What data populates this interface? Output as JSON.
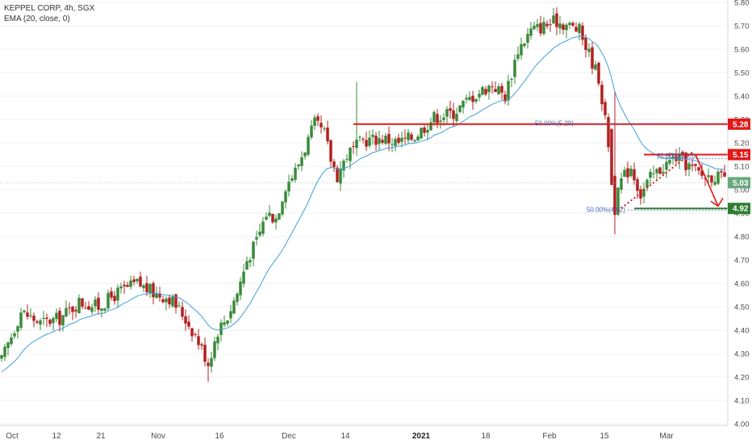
{
  "header": {
    "title": "KEPPEL CORP, 4h, SGX",
    "indicator": "EMA (20, close, 0)"
  },
  "chart_data": {
    "type": "candlestick",
    "ylim": [
      4.0,
      5.8
    ],
    "y_ticks": [
      "5.80",
      "5.70",
      "5.60",
      "5.50",
      "5.40",
      "5.30",
      "5.20",
      "5.10",
      "5.00",
      "4.90",
      "4.80",
      "4.70",
      "4.60",
      "4.50",
      "4.40",
      "4.30",
      "4.20",
      "4.10",
      "4.00"
    ],
    "x_ticks": [
      {
        "label": "Oct",
        "bold": false
      },
      {
        "label": "12",
        "bold": false
      },
      {
        "label": "21",
        "bold": false
      },
      {
        "label": "Nov",
        "bold": false
      },
      {
        "label": "16",
        "bold": false
      },
      {
        "label": "Dec",
        "bold": false
      },
      {
        "label": "14",
        "bold": false
      },
      {
        "label": "2021",
        "bold": true
      },
      {
        "label": "18",
        "bold": false
      },
      {
        "label": "Feb",
        "bold": false
      },
      {
        "label": "15",
        "bold": false
      },
      {
        "label": "Mar",
        "bold": false
      }
    ],
    "price_path": [
      [
        0,
        4.27
      ],
      [
        6,
        4.48
      ],
      [
        12,
        4.43
      ],
      [
        18,
        4.45
      ],
      [
        24,
        4.52
      ],
      [
        30,
        4.5
      ],
      [
        36,
        4.56
      ],
      [
        42,
        4.6
      ],
      [
        47,
        4.56
      ],
      [
        52,
        4.54
      ],
      [
        56,
        4.47
      ],
      [
        60,
        4.38
      ],
      [
        64,
        4.26
      ],
      [
        67,
        4.4
      ],
      [
        70,
        4.46
      ],
      [
        73,
        4.56
      ],
      [
        76,
        4.7
      ],
      [
        79,
        4.78
      ],
      [
        82,
        4.9
      ],
      [
        85,
        4.88
      ],
      [
        88,
        5.02
      ],
      [
        91,
        5.08
      ],
      [
        94,
        5.18
      ],
      [
        97,
        5.28
      ],
      [
        100,
        5.24
      ],
      [
        102,
        5.13
      ],
      [
        104,
        5.06
      ],
      [
        107,
        5.15
      ],
      [
        112,
        5.21
      ],
      [
        118,
        5.22
      ],
      [
        123,
        5.2
      ],
      [
        128,
        5.23
      ],
      [
        134,
        5.31
      ],
      [
        140,
        5.33
      ],
      [
        146,
        5.4
      ],
      [
        152,
        5.45
      ],
      [
        156,
        5.4
      ],
      [
        160,
        5.6
      ],
      [
        164,
        5.68
      ],
      [
        168,
        5.7
      ],
      [
        172,
        5.72
      ],
      [
        176,
        5.7
      ],
      [
        179,
        5.68
      ],
      [
        182,
        5.58
      ],
      [
        185,
        5.48
      ],
      [
        188,
        5.2
      ],
      [
        190,
        4.92
      ],
      [
        192,
        5.04
      ],
      [
        195,
        5.1
      ],
      [
        198,
        4.98
      ],
      [
        201,
        5.05
      ],
      [
        205,
        5.1
      ],
      [
        209,
        5.14
      ],
      [
        213,
        5.1
      ],
      [
        217,
        5.06
      ],
      [
        221,
        5.06
      ],
      [
        224,
        5.04
      ]
    ],
    "ema": {
      "name": "EMA (20, close, 0)",
      "color": "#3f9fe0"
    },
    "candle_colors": {
      "up": "#3a8a3a",
      "down": "#b32020"
    },
    "current_price": "5.03",
    "price_tags": [
      {
        "label": "5.28",
        "value": 5.28,
        "color": "#e01919"
      },
      {
        "label": "5.15",
        "value": 5.15,
        "color": "#e01919"
      },
      {
        "label": "5.03",
        "value": 5.03,
        "color": "#6aaa7e"
      },
      {
        "label": "4.92",
        "value": 4.92,
        "color": "#2e7d32"
      }
    ],
    "annotations": {
      "resistance_upper": {
        "value": 5.28,
        "color": "#e01919"
      },
      "resistance_lower": {
        "value": 5.15,
        "color": "#e01919"
      },
      "support": {
        "value": 4.92,
        "color": "#2e7d32"
      },
      "fib_upper": {
        "label": "50.00%(5.29)",
        "value": 5.29
      },
      "fib_mid": {
        "label": "61.80%(5.15)",
        "value": 5.15
      },
      "fib_lower": {
        "label": "50.00%(4.92)",
        "value": 4.92
      },
      "trendline": {
        "from": [
          191,
          4.91
        ],
        "to": [
          214,
          5.16
        ]
      },
      "projection_arrow": {
        "from": [
          215,
          5.15
        ],
        "to": [
          222,
          4.93
        ],
        "color": "#e01919"
      }
    }
  }
}
